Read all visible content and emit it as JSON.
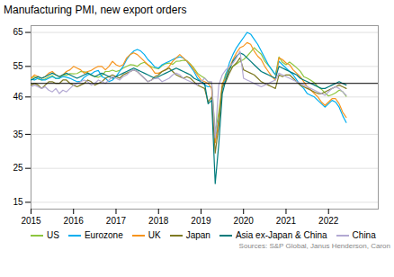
{
  "chart_data": {
    "type": "line",
    "title": "Manufacturing PMI, new export orders",
    "caption": "Sources: S&P Global, Janus Henderson, Caron",
    "x": [
      2015,
      2015.083333333333,
      2015.166666666667,
      2015.25,
      2015.333333333333,
      2015.416666666667,
      2015.5,
      2015.583333333333,
      2015.666666666667,
      2015.75,
      2015.833333333333,
      2015.916666666667,
      2016,
      2016.083333333333,
      2016.166666666667,
      2016.25,
      2016.333333333333,
      2016.416666666667,
      2016.5,
      2016.583333333333,
      2016.666666666667,
      2016.75,
      2016.833333333333,
      2016.916666666667,
      2017,
      2017.083333333333,
      2017.166666666667,
      2017.25,
      2017.333333333333,
      2017.416666666667,
      2017.5,
      2017.583333333333,
      2017.666666666667,
      2017.75,
      2017.833333333333,
      2017.916666666667,
      2018,
      2018.083333333333,
      2018.166666666667,
      2018.25,
      2018.333333333333,
      2018.416666666667,
      2018.5,
      2018.583333333333,
      2018.666666666667,
      2018.75,
      2018.833333333333,
      2018.916666666667,
      2019,
      2019.083333333333,
      2019.166666666667,
      2019.25,
      2019.333333333333,
      2019.416666666667,
      2019.5,
      2019.583333333333,
      2019.666666666667,
      2019.75,
      2019.833333333333,
      2019.916666666667,
      2020,
      2020.083333333333,
      2020.166666666667,
      2020.25,
      2020.333333333333,
      2020.416666666667,
      2020.5,
      2020.583333333333,
      2020.666666666667,
      2020.75,
      2020.833333333333,
      2020.916666666667,
      2021,
      2021.083333333333,
      2021.166666666667,
      2021.25,
      2021.333333333333,
      2021.416666666667,
      2021.5,
      2021.583333333333,
      2021.666666666667,
      2021.75,
      2021.833333333333,
      2021.916666666667,
      2022,
      2022.083333333333,
      2022.166666666667,
      2022.25,
      2022.333333333333,
      2022.416666666667
    ],
    "series": [
      {
        "name": "US",
        "color": "#8dc63f",
        "values": [
          51.5,
          52.0,
          51.3,
          51.0,
          51.3,
          51.9,
          52.3,
          51.4,
          51.5,
          52.5,
          52.4,
          52.9,
          52.8,
          52.9,
          53.5,
          53.4,
          53.2,
          52.4,
          52.0,
          51.8,
          52.3,
          53.5,
          53.5,
          53.9,
          53.5,
          53.8,
          54.5,
          55.0,
          55.5,
          55.4,
          55.0,
          55.8,
          56.2,
          55.5,
          54.9,
          54.5,
          54.3,
          55.2,
          55.8,
          56.0,
          55.6,
          56.5,
          56.6,
          56.8,
          56.7,
          55.7,
          54.5,
          53.0,
          52.2,
          51.6,
          50.5,
          50.0,
          35.5,
          41.5,
          49.3,
          52.9,
          54.3,
          55.0,
          55.7,
          56.5,
          57.0,
          58.0,
          59.2,
          60.5,
          59.5,
          58.6,
          56.5,
          55.3,
          54.0,
          52.5,
          57.8,
          56.2,
          55.5,
          56.3,
          55.5,
          54.6,
          53.6,
          52.0,
          51.5,
          50.9,
          50.2,
          49.0,
          48.3,
          47.2,
          46.3,
          46.7,
          47.2,
          48.0,
          47.6,
          46.2
        ]
      },
      {
        "name": "Eurozone",
        "color": "#00aeef",
        "values": [
          51.2,
          51.0,
          51.5,
          51.0,
          51.0,
          51.5,
          52.0,
          51.5,
          51.5,
          52.0,
          51.8,
          51.5,
          51.0,
          50.5,
          50.6,
          51.8,
          52.5,
          52.8,
          53.5,
          53.8,
          52.0,
          51.5,
          50.5,
          51.0,
          52.0,
          53.5,
          55.0,
          57.0,
          58.5,
          59.5,
          60.0,
          59.5,
          58.5,
          57.0,
          56.0,
          54.8,
          54.5,
          55.5,
          56.0,
          56.5,
          57.0,
          57.5,
          57.8,
          57.5,
          56.5,
          55.0,
          53.5,
          51.5,
          50.5,
          49.5,
          49.0,
          49.0,
          33.0,
          39.5,
          48.5,
          52.3,
          56.0,
          58.5,
          60.5,
          62.0,
          63.5,
          65.0,
          64.5,
          63.0,
          61.5,
          59.5,
          57.5,
          55.5,
          54.0,
          52.5,
          56.5,
          55.5,
          54.5,
          53.5,
          52.5,
          51.0,
          49.5,
          48.5,
          47.0,
          46.5,
          46.0,
          45.0,
          44.0,
          43.0,
          44.0,
          45.0,
          44.5,
          43.0,
          40.5,
          38.5
        ]
      },
      {
        "name": "UK",
        "color": "#f7941d",
        "values": [
          51.5,
          52.5,
          52.0,
          51.5,
          52.0,
          53.0,
          53.5,
          52.5,
          52.0,
          52.5,
          53.5,
          54.0,
          55.0,
          54.5,
          54.0,
          53.0,
          53.5,
          53.8,
          54.5,
          55.0,
          55.0,
          54.0,
          55.0,
          56.5,
          55.5,
          55.0,
          55.5,
          57.5,
          58.5,
          59.0,
          58.5,
          57.5,
          56.5,
          55.5,
          54.5,
          53.0,
          53.0,
          53.5,
          54.0,
          55.0,
          56.5,
          57.5,
          58.5,
          57.5,
          56.5,
          55.5,
          54.0,
          52.5,
          51.0,
          50.5,
          50.0,
          48.5,
          32.5,
          39.0,
          50.0,
          51.5,
          54.5,
          57.0,
          59.0,
          60.5,
          61.0,
          62.0,
          61.5,
          59.5,
          58.0,
          57.0,
          55.0,
          53.5,
          52.0,
          51.0,
          57.5,
          57.0,
          56.0,
          55.5,
          54.0,
          53.0,
          52.0,
          50.5,
          49.0,
          48.0,
          47.0,
          46.0,
          44.5,
          43.5,
          44.5,
          45.5,
          45.5,
          44.0,
          41.5,
          40.0
        ]
      },
      {
        "name": "Japan",
        "color": "#7f7a23",
        "values": [
          49.5,
          50.0,
          49.5,
          48.5,
          49.5,
          50.5,
          50.5,
          50.0,
          50.0,
          51.0,
          51.0,
          50.0,
          49.5,
          49.0,
          49.5,
          50.0,
          51.0,
          50.5,
          49.5,
          50.0,
          50.5,
          51.5,
          52.0,
          52.5,
          52.0,
          51.5,
          52.5,
          53.0,
          53.5,
          54.0,
          53.5,
          52.5,
          51.5,
          50.5,
          51.0,
          52.0,
          52.5,
          53.5,
          54.0,
          54.5,
          53.5,
          52.5,
          52.0,
          51.5,
          52.0,
          51.5,
          50.5,
          49.5,
          49.0,
          48.5,
          44.5,
          46.0,
          29.5,
          37.5,
          49.0,
          50.5,
          53.0,
          55.0,
          56.0,
          57.5,
          54.0,
          53.5,
          53.0,
          52.5,
          51.5,
          50.5,
          50.0,
          49.5,
          49.0,
          48.5,
          52.5,
          52.0,
          52.5,
          52.5,
          51.5,
          50.5,
          49.5,
          49.0,
          48.5,
          48.0,
          47.5,
          47.0,
          47.0,
          47.5,
          48.0,
          48.5,
          49.0,
          49.5,
          49.0,
          48.5
        ]
      },
      {
        "name": "Asia ex-Japan & China",
        "color": "#007b7c",
        "values": [
          51.0,
          51.5,
          52.0,
          51.5,
          52.0,
          52.5,
          53.0,
          52.5,
          52.0,
          52.5,
          53.0,
          52.5,
          52.0,
          51.5,
          52.0,
          52.5,
          53.0,
          52.5,
          52.0,
          52.5,
          53.0,
          52.5,
          52.0,
          51.5,
          52.0,
          52.5,
          53.0,
          53.5,
          54.0,
          54.5,
          54.0,
          53.5,
          53.0,
          52.5,
          52.0,
          51.5,
          52.0,
          52.5,
          53.0,
          53.5,
          54.0,
          54.5,
          54.0,
          53.5,
          53.0,
          52.5,
          51.5,
          51.0,
          50.5,
          50.0,
          44.0,
          45.0,
          20.5,
          32.0,
          47.0,
          51.0,
          54.0,
          56.5,
          58.0,
          59.0,
          58.5,
          57.5,
          56.5,
          55.5,
          54.5,
          53.5,
          53.0,
          52.5,
          52.0,
          51.5,
          55.0,
          54.5,
          54.0,
          53.5,
          53.0,
          52.5,
          51.5,
          51.0,
          50.5,
          50.0,
          49.5,
          49.0,
          48.5,
          48.5,
          49.0,
          49.5,
          50.0,
          50.5,
          50.0,
          49.5
        ]
      },
      {
        "name": "China",
        "color": "#b3a9d3",
        "values": [
          49.0,
          49.5,
          49.0,
          48.5,
          49.0,
          48.0,
          47.5,
          48.5,
          47.0,
          48.0,
          47.5,
          48.5,
          49.5,
          50.0,
          50.5,
          51.0,
          50.5,
          49.5,
          50.0,
          51.0,
          50.5,
          50.0,
          51.0,
          52.0,
          51.5,
          51.0,
          52.0,
          52.5,
          53.5,
          54.0,
          53.5,
          52.5,
          51.5,
          50.5,
          51.0,
          51.5,
          51.5,
          50.5,
          51.0,
          51.5,
          52.5,
          53.0,
          52.5,
          51.5,
          51.0,
          50.5,
          50.0,
          49.5,
          50.5,
          51.5,
          50.5,
          50.5,
          34.0,
          49.5,
          52.5,
          54.0,
          55.0,
          56.0,
          57.5,
          59.5,
          51.5,
          51.0,
          50.5,
          50.0,
          49.5,
          49.0,
          49.5,
          50.0,
          50.5,
          51.0,
          53.0,
          52.5,
          52.0,
          51.5,
          51.0,
          50.5,
          50.0,
          49.5,
          49.0,
          48.5,
          48.0,
          47.5,
          47.0,
          46.5,
          47.5,
          48.5,
          49.0,
          48.5,
          47.5,
          46.5
        ]
      }
    ],
    "xlim": [
      2015.0,
      2023.17
    ],
    "xticks": [
      2015,
      2016,
      2017,
      2018,
      2019,
      2020,
      2021,
      2022
    ],
    "ylim": [
      13,
      67
    ],
    "yticks": [
      15,
      25,
      35,
      46,
      55,
      65
    ],
    "hline": 50,
    "grid": true,
    "legend": "bottom"
  }
}
